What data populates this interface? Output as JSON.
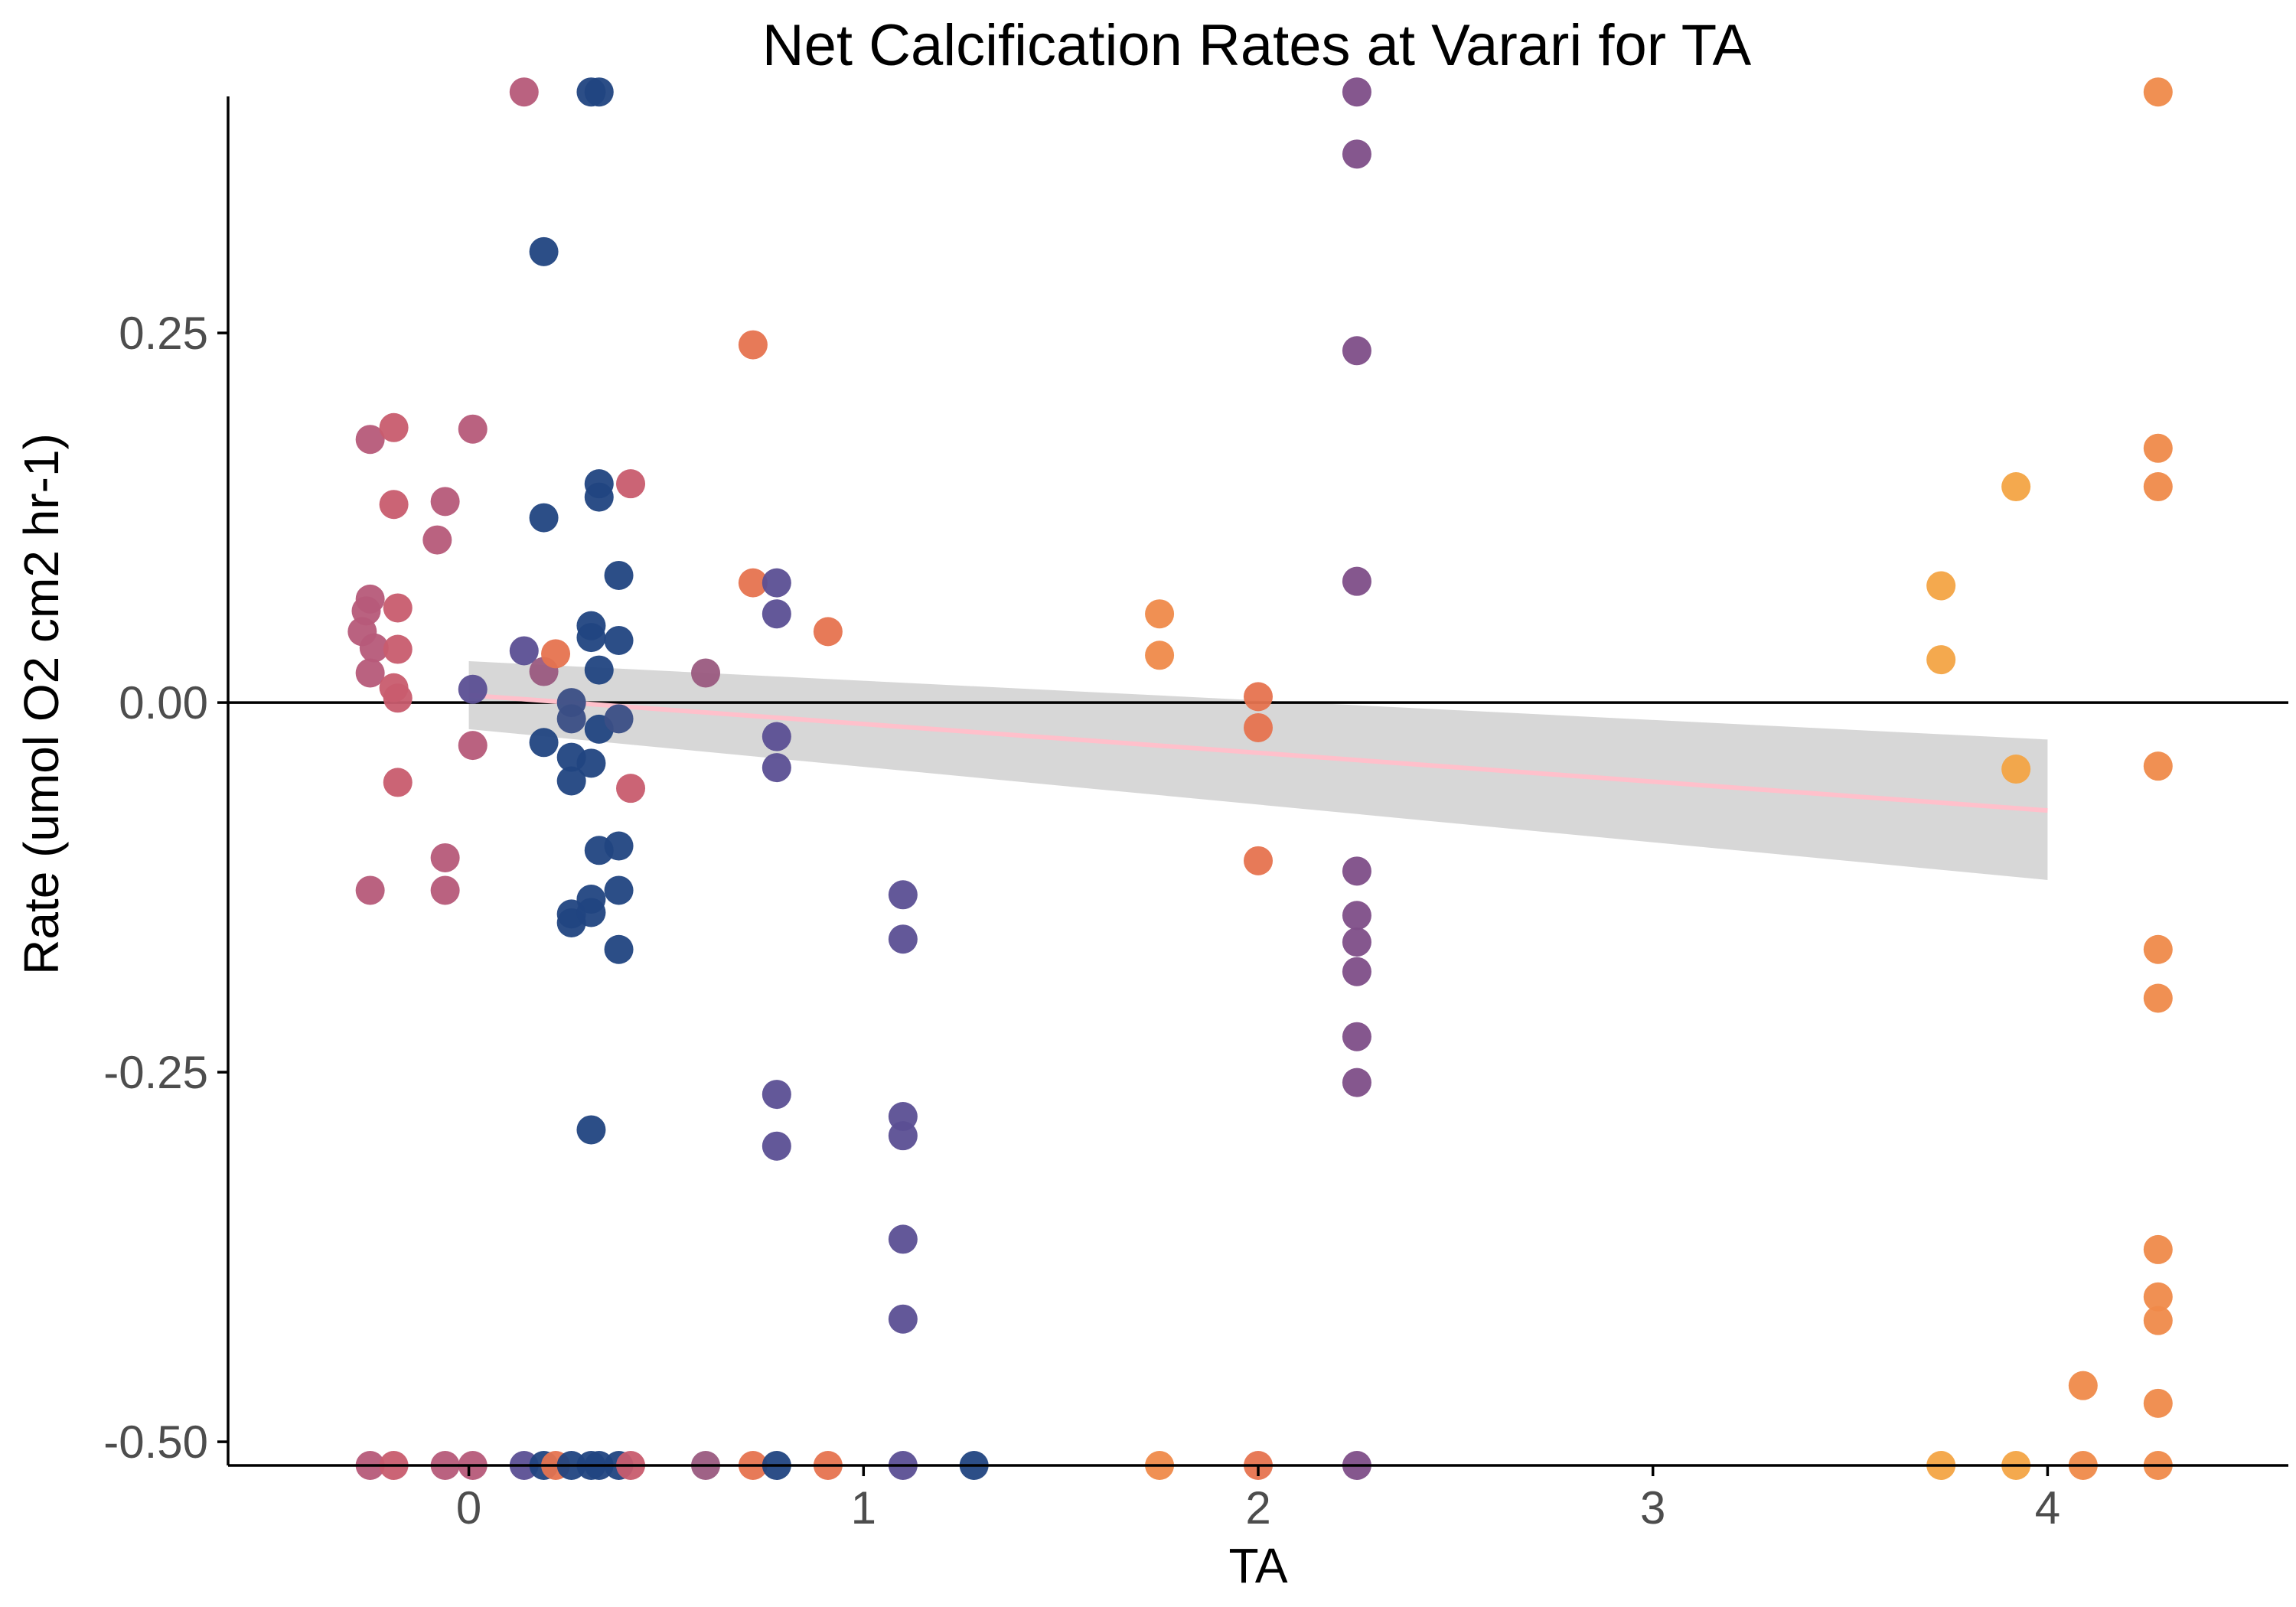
{
  "chart_data": {
    "type": "scatter",
    "title": "Net Calcification Rates at Varari for TA",
    "xlabel": "TA",
    "ylabel": "Rate (umol O2 cm2 hr-1)",
    "xlim": [
      -0.61,
      4.61
    ],
    "ylim": [
      -0.516,
      0.41
    ],
    "x_ticks": [
      0,
      1,
      2,
      3,
      4
    ],
    "x_tick_labels": [
      "0",
      "1",
      "2",
      "3",
      "4"
    ],
    "y_ticks": [
      0.25,
      0.0,
      -0.25,
      -0.5
    ],
    "y_tick_labels": [
      "0.25",
      "0.00",
      "-0.25",
      "-0.50"
    ],
    "grid": false,
    "legend": "none",
    "reference_line_y": 0.0,
    "trend": {
      "x_start": 0.0,
      "y_start": 0.005,
      "x_end": 4.0,
      "y_end": -0.073,
      "band_lower_start": -0.018,
      "band_upper_start": 0.028,
      "band_lower_end": -0.12,
      "band_upper_end": -0.025,
      "line_color": "#ffc0cb",
      "band_color": "#bdbdbd"
    },
    "point_colors": {
      "magenta": "#b65a79",
      "rose": "#c85c6e",
      "coral": "#e6734f",
      "orange": "#ef8a4a",
      "amber": "#f3a445",
      "navy": "#214481",
      "indigo": "#5b4f94",
      "purple": "#7e4e88",
      "slate": "#3a4e85",
      "mauve": "#9a5a80"
    },
    "points": [
      {
        "x": -0.25,
        "y": 0.178,
        "c": "magenta"
      },
      {
        "x": -0.25,
        "y": 0.07,
        "c": "magenta"
      },
      {
        "x": -0.26,
        "y": 0.062,
        "c": "magenta"
      },
      {
        "x": -0.27,
        "y": 0.048,
        "c": "magenta"
      },
      {
        "x": -0.24,
        "y": 0.037,
        "c": "magenta"
      },
      {
        "x": -0.25,
        "y": 0.02,
        "c": "magenta"
      },
      {
        "x": -0.25,
        "y": -0.127,
        "c": "magenta"
      },
      {
        "x": -0.19,
        "y": 0.186,
        "c": "rose"
      },
      {
        "x": -0.19,
        "y": 0.134,
        "c": "rose"
      },
      {
        "x": -0.18,
        "y": 0.064,
        "c": "rose"
      },
      {
        "x": -0.18,
        "y": 0.036,
        "c": "rose"
      },
      {
        "x": -0.19,
        "y": 0.01,
        "c": "rose"
      },
      {
        "x": -0.18,
        "y": 0.003,
        "c": "rose"
      },
      {
        "x": -0.18,
        "y": -0.054,
        "c": "rose"
      },
      {
        "x": -0.06,
        "y": 0.136,
        "c": "magenta"
      },
      {
        "x": -0.06,
        "y": -0.105,
        "c": "magenta"
      },
      {
        "x": -0.08,
        "y": 0.11,
        "c": "magenta"
      },
      {
        "x": -0.06,
        "y": -0.127,
        "c": "magenta"
      },
      {
        "x": 0.01,
        "y": 0.185,
        "c": "magenta"
      },
      {
        "x": 0.01,
        "y": -0.029,
        "c": "magenta"
      },
      {
        "x": 0.01,
        "y": 0.009,
        "c": "indigo"
      },
      {
        "x": 0.14,
        "y": 0.035,
        "c": "indigo"
      },
      {
        "x": 0.14,
        "y": 0.413,
        "c": "magenta"
      },
      {
        "x": 0.19,
        "y": 0.305,
        "c": "navy"
      },
      {
        "x": 0.19,
        "y": 0.125,
        "c": "navy"
      },
      {
        "x": 0.19,
        "y": 0.021,
        "c": "mauve"
      },
      {
        "x": 0.19,
        "y": -0.027,
        "c": "navy"
      },
      {
        "x": 0.22,
        "y": 0.033,
        "c": "coral"
      },
      {
        "x": 0.26,
        "y": 0.0,
        "c": "slate"
      },
      {
        "x": 0.26,
        "y": -0.011,
        "c": "slate"
      },
      {
        "x": 0.26,
        "y": -0.037,
        "c": "navy"
      },
      {
        "x": 0.26,
        "y": -0.053,
        "c": "navy"
      },
      {
        "x": 0.26,
        "y": -0.143,
        "c": "navy"
      },
      {
        "x": 0.26,
        "y": -0.149,
        "c": "navy"
      },
      {
        "x": 0.31,
        "y": 0.413,
        "c": "navy"
      },
      {
        "x": 0.33,
        "y": 0.413,
        "c": "navy"
      },
      {
        "x": 0.33,
        "y": 0.148,
        "c": "navy"
      },
      {
        "x": 0.33,
        "y": 0.139,
        "c": "navy"
      },
      {
        "x": 0.31,
        "y": 0.052,
        "c": "navy"
      },
      {
        "x": 0.31,
        "y": 0.044,
        "c": "navy"
      },
      {
        "x": 0.33,
        "y": 0.022,
        "c": "navy"
      },
      {
        "x": 0.33,
        "y": -0.018,
        "c": "navy"
      },
      {
        "x": 0.31,
        "y": -0.041,
        "c": "navy"
      },
      {
        "x": 0.33,
        "y": -0.1,
        "c": "navy"
      },
      {
        "x": 0.31,
        "y": -0.133,
        "c": "navy"
      },
      {
        "x": 0.31,
        "y": -0.142,
        "c": "navy"
      },
      {
        "x": 0.31,
        "y": -0.289,
        "c": "navy"
      },
      {
        "x": 0.38,
        "y": 0.086,
        "c": "navy"
      },
      {
        "x": 0.38,
        "y": 0.042,
        "c": "navy"
      },
      {
        "x": 0.38,
        "y": -0.011,
        "c": "slate"
      },
      {
        "x": 0.38,
        "y": -0.097,
        "c": "navy"
      },
      {
        "x": 0.38,
        "y": -0.127,
        "c": "navy"
      },
      {
        "x": 0.38,
        "y": -0.167,
        "c": "navy"
      },
      {
        "x": 0.41,
        "y": 0.148,
        "c": "rose"
      },
      {
        "x": 0.41,
        "y": -0.058,
        "c": "rose"
      },
      {
        "x": 0.6,
        "y": 0.02,
        "c": "mauve"
      },
      {
        "x": 0.72,
        "y": 0.242,
        "c": "coral"
      },
      {
        "x": 0.72,
        "y": 0.081,
        "c": "coral"
      },
      {
        "x": 0.78,
        "y": 0.081,
        "c": "indigo"
      },
      {
        "x": 0.78,
        "y": 0.06,
        "c": "indigo"
      },
      {
        "x": 0.78,
        "y": -0.023,
        "c": "indigo"
      },
      {
        "x": 0.78,
        "y": -0.044,
        "c": "indigo"
      },
      {
        "x": 0.78,
        "y": -0.265,
        "c": "indigo"
      },
      {
        "x": 0.78,
        "y": -0.3,
        "c": "indigo"
      },
      {
        "x": 0.91,
        "y": 0.048,
        "c": "coral"
      },
      {
        "x": 1.1,
        "y": -0.13,
        "c": "indigo"
      },
      {
        "x": 1.1,
        "y": -0.16,
        "c": "indigo"
      },
      {
        "x": 1.1,
        "y": -0.28,
        "c": "indigo"
      },
      {
        "x": 1.1,
        "y": -0.293,
        "c": "indigo"
      },
      {
        "x": 1.1,
        "y": -0.363,
        "c": "indigo"
      },
      {
        "x": 1.1,
        "y": -0.417,
        "c": "indigo"
      },
      {
        "x": 1.75,
        "y": 0.06,
        "c": "orange"
      },
      {
        "x": 1.75,
        "y": 0.032,
        "c": "orange"
      },
      {
        "x": 2.0,
        "y": 0.004,
        "c": "coral"
      },
      {
        "x": 2.0,
        "y": -0.017,
        "c": "coral"
      },
      {
        "x": 2.0,
        "y": -0.107,
        "c": "coral"
      },
      {
        "x": 2.25,
        "y": 0.413,
        "c": "purple"
      },
      {
        "x": 2.25,
        "y": 0.371,
        "c": "purple"
      },
      {
        "x": 2.25,
        "y": 0.238,
        "c": "purple"
      },
      {
        "x": 2.25,
        "y": 0.082,
        "c": "purple"
      },
      {
        "x": 2.25,
        "y": -0.114,
        "c": "purple"
      },
      {
        "x": 2.25,
        "y": -0.144,
        "c": "purple"
      },
      {
        "x": 2.25,
        "y": -0.162,
        "c": "purple"
      },
      {
        "x": 2.25,
        "y": -0.182,
        "c": "purple"
      },
      {
        "x": 2.25,
        "y": -0.226,
        "c": "purple"
      },
      {
        "x": 2.25,
        "y": -0.257,
        "c": "purple"
      },
      {
        "x": 3.73,
        "y": 0.079,
        "c": "amber"
      },
      {
        "x": 3.73,
        "y": 0.029,
        "c": "amber"
      },
      {
        "x": 3.92,
        "y": 0.146,
        "c": "amber"
      },
      {
        "x": 3.92,
        "y": -0.045,
        "c": "amber"
      },
      {
        "x": 4.09,
        "y": -0.462,
        "c": "orange"
      },
      {
        "x": 4.28,
        "y": 0.413,
        "c": "orange"
      },
      {
        "x": 4.28,
        "y": 0.172,
        "c": "orange"
      },
      {
        "x": 4.28,
        "y": 0.146,
        "c": "orange"
      },
      {
        "x": 4.28,
        "y": -0.043,
        "c": "orange"
      },
      {
        "x": 4.28,
        "y": -0.167,
        "c": "orange"
      },
      {
        "x": 4.28,
        "y": -0.2,
        "c": "orange"
      },
      {
        "x": 4.28,
        "y": -0.37,
        "c": "orange"
      },
      {
        "x": 4.28,
        "y": -0.402,
        "c": "orange"
      },
      {
        "x": 4.28,
        "y": -0.418,
        "c": "orange"
      },
      {
        "x": 4.28,
        "y": -0.474,
        "c": "orange"
      },
      {
        "x": -0.25,
        "y": -0.516,
        "c": "magenta"
      },
      {
        "x": -0.19,
        "y": -0.516,
        "c": "rose"
      },
      {
        "x": -0.06,
        "y": -0.516,
        "c": "magenta"
      },
      {
        "x": 0.01,
        "y": -0.516,
        "c": "magenta"
      },
      {
        "x": 0.14,
        "y": -0.516,
        "c": "indigo"
      },
      {
        "x": 0.19,
        "y": -0.516,
        "c": "navy"
      },
      {
        "x": 0.22,
        "y": -0.516,
        "c": "coral"
      },
      {
        "x": 0.26,
        "y": -0.516,
        "c": "navy"
      },
      {
        "x": 0.31,
        "y": -0.516,
        "c": "navy"
      },
      {
        "x": 0.33,
        "y": -0.516,
        "c": "navy"
      },
      {
        "x": 0.38,
        "y": -0.516,
        "c": "navy"
      },
      {
        "x": 0.41,
        "y": -0.516,
        "c": "rose"
      },
      {
        "x": 0.6,
        "y": -0.516,
        "c": "mauve"
      },
      {
        "x": 0.72,
        "y": -0.516,
        "c": "coral"
      },
      {
        "x": 0.78,
        "y": -0.516,
        "c": "navy"
      },
      {
        "x": 0.91,
        "y": -0.516,
        "c": "coral"
      },
      {
        "x": 1.1,
        "y": -0.516,
        "c": "indigo"
      },
      {
        "x": 1.28,
        "y": -0.516,
        "c": "navy"
      },
      {
        "x": 1.75,
        "y": -0.516,
        "c": "orange"
      },
      {
        "x": 2.0,
        "y": -0.516,
        "c": "coral"
      },
      {
        "x": 2.25,
        "y": -0.516,
        "c": "purple"
      },
      {
        "x": 3.73,
        "y": -0.516,
        "c": "amber"
      },
      {
        "x": 3.92,
        "y": -0.516,
        "c": "amber"
      },
      {
        "x": 4.09,
        "y": -0.516,
        "c": "orange"
      },
      {
        "x": 4.28,
        "y": -0.516,
        "c": "orange"
      }
    ]
  }
}
